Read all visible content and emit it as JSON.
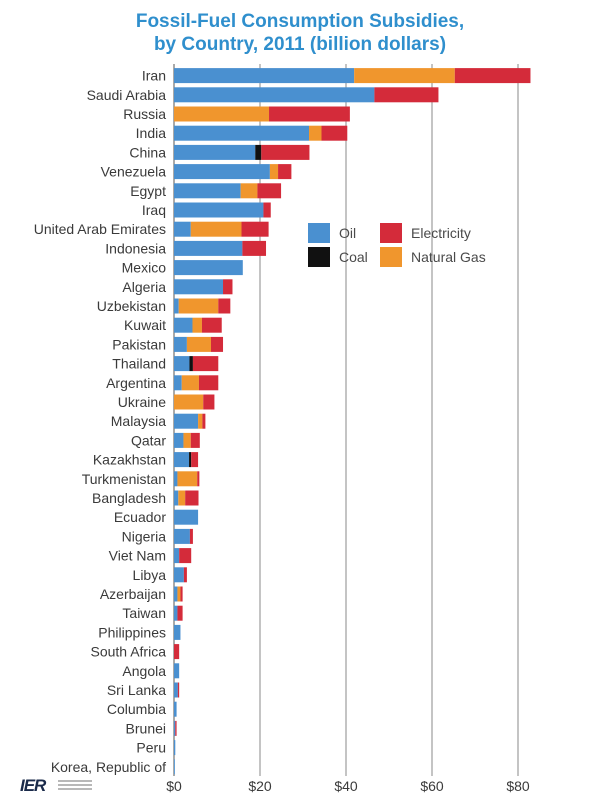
{
  "chart_data": {
    "type": "bar",
    "orientation": "horizontal",
    "stacked": true,
    "title_lines": [
      "Fossil-Fuel Consumption Subsidies,",
      "by Country, 2011 (billion dollars)"
    ],
    "categories": [
      "Iran",
      "Saudi Arabia",
      "Russia",
      "India",
      "China",
      "Venezuela",
      "Egypt",
      "Iraq",
      "United Arab Emirates",
      "Indonesia",
      "Mexico",
      "Algeria",
      "Uzbekistan",
      "Kuwait",
      "Pakistan",
      "Thailand",
      "Argentina",
      "Ukraine",
      "Malaysia",
      "Qatar",
      "Kazakhstan",
      "Turkmenistan",
      "Bangladesh",
      "Ecuador",
      "Nigeria",
      "Viet Nam",
      "Libya",
      "Azerbaijan",
      "Taiwan",
      "Philippines",
      "South Africa",
      "Angola",
      "Sri Lanka",
      "Columbia",
      "Brunei",
      "Peru",
      "Korea, Republic of"
    ],
    "series": [
      {
        "name": "Oil",
        "color": "#4a90d0",
        "values": [
          41.9,
          46.6,
          0,
          31.4,
          18.9,
          22.3,
          15.5,
          20.8,
          3.9,
          15.9,
          16.0,
          11.4,
          1.1,
          4.3,
          3.0,
          3.6,
          1.8,
          0,
          5.6,
          2.2,
          3.5,
          0.8,
          1.0,
          5.6,
          3.7,
          1.2,
          2.3,
          0.8,
          0.8,
          1.5,
          0,
          1.2,
          0.9,
          0.6,
          0.3,
          0.3,
          0.2
        ]
      },
      {
        "name": "Coal",
        "color": "#111111",
        "values": [
          0,
          0,
          0,
          0,
          1.4,
          0,
          0,
          0,
          0,
          0,
          0,
          0,
          0,
          0,
          0,
          0.8,
          0,
          0,
          0,
          0,
          0.5,
          0,
          0,
          0,
          0,
          0,
          0,
          0,
          0,
          0,
          0,
          0,
          0,
          0,
          0,
          0,
          0
        ]
      },
      {
        "name": "Natural Gas",
        "color": "#f0962d",
        "values": [
          23.4,
          0,
          22.1,
          2.9,
          0,
          1.9,
          3.9,
          0,
          11.8,
          0,
          0,
          0,
          9.2,
          2.2,
          5.6,
          0,
          4.0,
          6.8,
          1.0,
          1.7,
          0,
          4.6,
          1.6,
          0,
          0,
          0,
          0,
          0.7,
          0,
          0,
          0,
          0,
          0,
          0,
          0,
          0,
          0
        ]
      },
      {
        "name": "Electricity",
        "color": "#d42b3a",
        "values": [
          17.6,
          14.9,
          18.8,
          6.0,
          11.2,
          3.1,
          5.5,
          1.7,
          6.3,
          5.5,
          0,
          2.2,
          2.8,
          4.6,
          2.8,
          5.9,
          4.5,
          2.6,
          0.7,
          2.1,
          1.6,
          0.5,
          3.1,
          0,
          0.7,
          2.8,
          0.7,
          0.5,
          1.2,
          0,
          1.2,
          0,
          0.3,
          0,
          0.3,
          0,
          0
        ]
      }
    ],
    "x_ticks": [
      0,
      20,
      40,
      60,
      80
    ],
    "x_tick_labels": [
      "$0",
      "$20",
      "$40",
      "$60",
      "$80"
    ],
    "xlim": [
      0,
      83
    ],
    "grid": "vertical",
    "legend": {
      "placement": "center-right",
      "order": [
        "Oil",
        "Electricity",
        "Coal",
        "Natural Gas"
      ]
    },
    "xlabel": "",
    "ylabel": ""
  },
  "logo": {
    "mark": "IER"
  }
}
